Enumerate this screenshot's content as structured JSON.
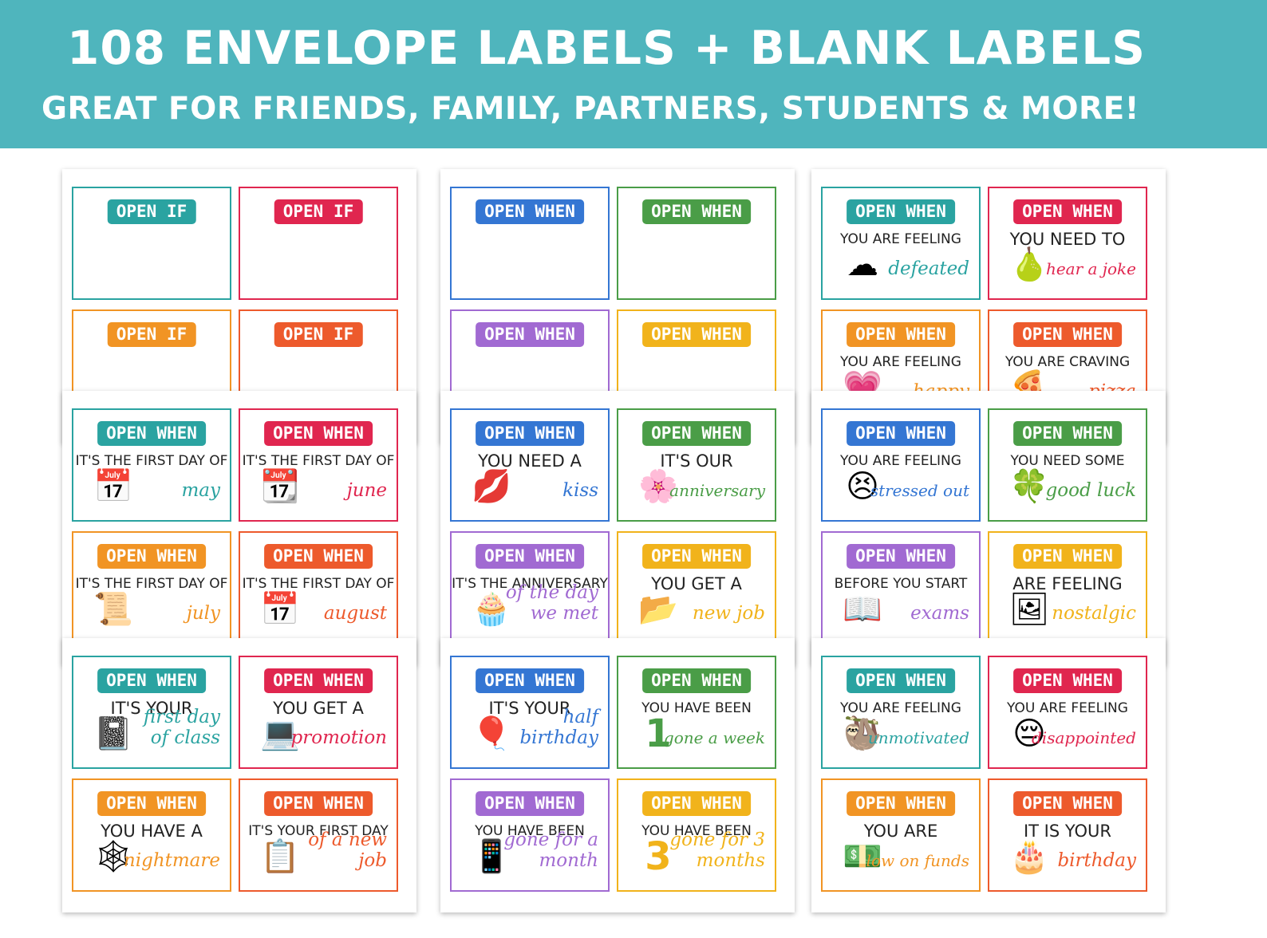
{
  "header": {
    "title": "108 ENVELOPE LABELS + BLANK LABELS",
    "subtitle": "GREAT FOR FRIENDS, FAMILY, PARTNERS, STUDENTS & MORE!"
  },
  "colors": {
    "banner": "#4fb5bd",
    "teal": "#2aa3a1",
    "red": "#e0264f",
    "orange": "#f19424",
    "deep_orange": "#ed5a2c",
    "blue": "#3476d3",
    "green": "#4a9d47",
    "purple": "#a16ad2",
    "yellow": "#f1b31b"
  },
  "sheets": [
    {
      "cards": [
        {
          "label": "OPEN IF",
          "color": "#2aa3a1",
          "line": "",
          "script": "",
          "icon": ""
        },
        {
          "label": "OPEN IF",
          "color": "#e0264f",
          "line": "",
          "script": "",
          "icon": ""
        },
        {
          "label": "OPEN IF",
          "color": "#f19424",
          "line": "",
          "script": "",
          "icon": ""
        },
        {
          "label": "OPEN IF",
          "color": "#ed5a2c",
          "line": "",
          "script": "",
          "icon": ""
        }
      ]
    },
    {
      "cards": [
        {
          "label": "OPEN WHEN",
          "color": "#3476d3",
          "line": "",
          "script": "",
          "icon": ""
        },
        {
          "label": "OPEN WHEN",
          "color": "#4a9d47",
          "line": "",
          "script": "",
          "icon": ""
        },
        {
          "label": "OPEN WHEN",
          "color": "#a16ad2",
          "line": "",
          "script": "",
          "icon": ""
        },
        {
          "label": "OPEN WHEN",
          "color": "#f1b31b",
          "line": "",
          "script": "",
          "icon": ""
        }
      ]
    },
    {
      "cards": [
        {
          "label": "OPEN WHEN",
          "color": "#2aa3a1",
          "line": "YOU ARE FEELING",
          "script": "defeated",
          "icon": "☁"
        },
        {
          "label": "OPEN WHEN",
          "color": "#e0264f",
          "line": "YOU NEED TO",
          "script": "hear a joke",
          "icon": "🍐"
        },
        {
          "label": "OPEN WHEN",
          "color": "#f19424",
          "line": "YOU ARE FEELING",
          "script": "happy",
          "icon": "💗"
        },
        {
          "label": "OPEN WHEN",
          "color": "#ed5a2c",
          "line": "YOU ARE CRAVING",
          "script": "pizza",
          "icon": "🍕"
        }
      ]
    },
    {
      "cards": [
        {
          "label": "OPEN WHEN",
          "color": "#2aa3a1",
          "line": "IT'S THE FIRST DAY OF",
          "script": "may",
          "icon": "📅"
        },
        {
          "label": "OPEN WHEN",
          "color": "#e0264f",
          "line": "IT'S THE FIRST DAY OF",
          "script": "june",
          "icon": "📆"
        },
        {
          "label": "OPEN WHEN",
          "color": "#f19424",
          "line": "IT'S THE FIRST DAY OF",
          "script": "july",
          "icon": "📜"
        },
        {
          "label": "OPEN WHEN",
          "color": "#ed5a2c",
          "line": "IT'S THE FIRST DAY OF",
          "script": "august",
          "icon": "📅"
        }
      ]
    },
    {
      "cards": [
        {
          "label": "OPEN WHEN",
          "color": "#3476d3",
          "line": "YOU NEED A",
          "script": "kiss",
          "icon": "💋"
        },
        {
          "label": "OPEN WHEN",
          "color": "#4a9d47",
          "line": "IT'S OUR",
          "script": "anniversary",
          "icon": "🌸"
        },
        {
          "label": "OPEN WHEN",
          "color": "#a16ad2",
          "line": "IT'S THE ANNIVERSARY",
          "script": "of the day\nwe met",
          "icon": "🧁"
        },
        {
          "label": "OPEN WHEN",
          "color": "#f1b31b",
          "line": "YOU GET A",
          "script": "new job",
          "icon": "📂"
        }
      ]
    },
    {
      "cards": [
        {
          "label": "OPEN WHEN",
          "color": "#3476d3",
          "line": "YOU ARE FEELING",
          "script": "stressed out",
          "icon": "😣"
        },
        {
          "label": "OPEN WHEN",
          "color": "#4a9d47",
          "line": "YOU NEED SOME",
          "script": "good luck",
          "icon": "🍀"
        },
        {
          "label": "OPEN WHEN",
          "color": "#a16ad2",
          "line": "BEFORE YOU START",
          "script": "exams",
          "icon": "📖"
        },
        {
          "label": "OPEN WHEN",
          "color": "#f1b31b",
          "line": "ARE FEELING",
          "script": "nostalgic",
          "icon": "🖼"
        }
      ]
    },
    {
      "cards": [
        {
          "label": "OPEN WHEN",
          "color": "#2aa3a1",
          "line": "IT'S YOUR",
          "script": "first day\nof class",
          "icon": "📓"
        },
        {
          "label": "OPEN WHEN",
          "color": "#e0264f",
          "line": "YOU GET A",
          "script": "promotion",
          "icon": "💻"
        },
        {
          "label": "OPEN WHEN",
          "color": "#f19424",
          "line": "YOU HAVE A",
          "script": "nightmare",
          "icon": "🕸"
        },
        {
          "label": "OPEN WHEN",
          "color": "#ed5a2c",
          "line": "IT'S YOUR FIRST DAY",
          "script": "of a new\njob",
          "icon": "📋"
        }
      ]
    },
    {
      "cards": [
        {
          "label": "OPEN WHEN",
          "color": "#3476d3",
          "line": "IT'S YOUR",
          "script": "half\nbirthday",
          "icon": "🎈"
        },
        {
          "label": "OPEN WHEN",
          "color": "#4a9d47",
          "line": "YOU HAVE BEEN",
          "script": "gone a week",
          "icon": "1"
        },
        {
          "label": "OPEN WHEN",
          "color": "#a16ad2",
          "line": "YOU HAVE BEEN",
          "script": "gone for a\nmonth",
          "icon": "📱"
        },
        {
          "label": "OPEN WHEN",
          "color": "#f1b31b",
          "line": "YOU HAVE BEEN",
          "script": "gone for 3\nmonths",
          "icon": "3"
        }
      ]
    },
    {
      "cards": [
        {
          "label": "OPEN WHEN",
          "color": "#2aa3a1",
          "line": "YOU ARE FEELING",
          "script": "unmotivated",
          "icon": "🦥"
        },
        {
          "label": "OPEN WHEN",
          "color": "#e0264f",
          "line": "YOU ARE FEELING",
          "script": "disappointed",
          "icon": "😔"
        },
        {
          "label": "OPEN WHEN",
          "color": "#f19424",
          "line": "YOU ARE",
          "script": "low on funds",
          "icon": "💵"
        },
        {
          "label": "OPEN WHEN",
          "color": "#ed5a2c",
          "line": "IT IS YOUR",
          "script": "birthday",
          "icon": "🎂"
        }
      ]
    }
  ]
}
